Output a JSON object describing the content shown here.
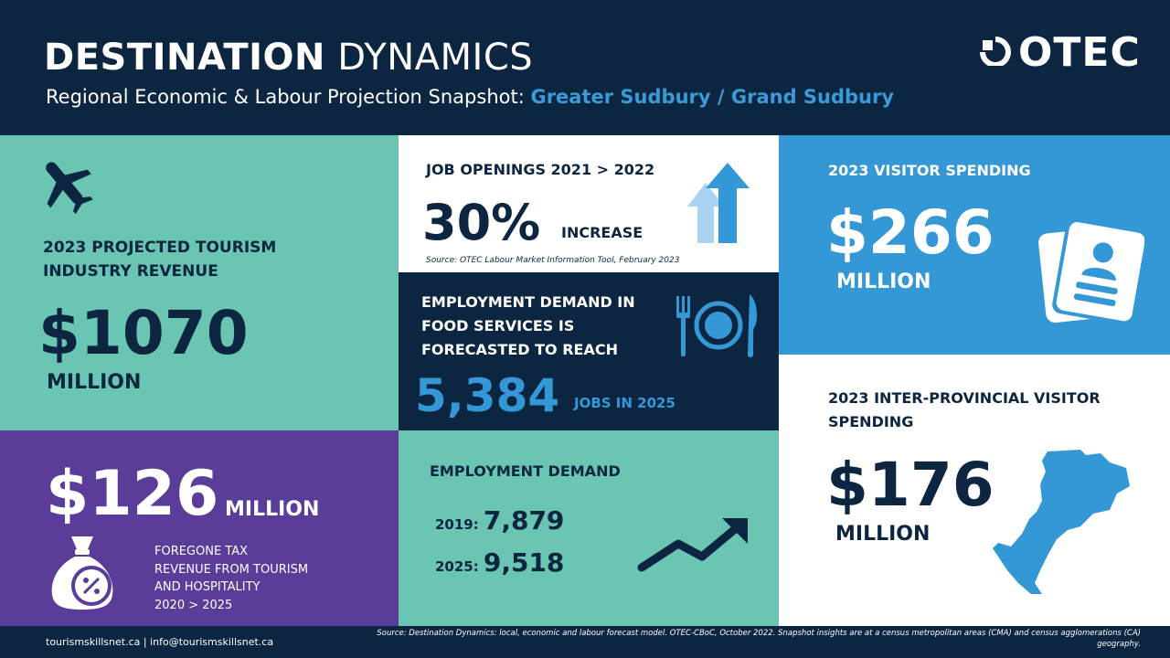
{
  "header": {
    "title_bold": "DESTINATION",
    "title_light": "DYNAMICS",
    "subtitle": "Regional Economic & Labour Projection Snapshot:",
    "region": "Greater Sudbury / Grand Sudbury",
    "logo_text": "OTEC"
  },
  "tourism_revenue": {
    "label_line1": "2023 PROJECTED TOURISM",
    "label_line2": "INDUSTRY REVENUE",
    "value": "$1070",
    "unit": "MILLION",
    "icon": "airplane-icon"
  },
  "foregone_tax": {
    "value": "$126",
    "unit": "MILLION",
    "line1": "FOREGONE TAX",
    "line2": "REVENUE FROM TOURISM",
    "line3": "AND HOSPITALITY",
    "line4": "2020 > 2025",
    "icon": "money-bag-percent-icon"
  },
  "job_openings": {
    "label": "JOB OPENINGS  2021 > 2022",
    "value": "30%",
    "unit": "INCREASE",
    "source": "Source: OTEC Labour Market Information Tool, February 2023",
    "icon": "up-arrows-icon"
  },
  "food_services": {
    "line1": "EMPLOYMENT DEMAND IN",
    "line2": "FOOD SERVICES IS",
    "line3": "FORECASTED TO REACH",
    "value": "5,384",
    "unit": "JOBS IN 2025",
    "icon": "plate-cutlery-icon"
  },
  "employment_demand": {
    "label": "EMPLOYMENT DEMAND",
    "rows": [
      {
        "year": "2019:",
        "value": "7,879"
      },
      {
        "year": "2025:",
        "value": "9,518"
      }
    ],
    "icon": "trend-up-arrow-icon"
  },
  "visitor_spending": {
    "label": "2023 VISITOR SPENDING",
    "value": "$266",
    "unit": "MILLION",
    "icon": "id-card-icon"
  },
  "interprovincial": {
    "label_line1": "2023 INTER-PROVINCIAL VISITOR",
    "label_line2": "SPENDING",
    "value": "$176",
    "unit": "MILLION",
    "icon": "sudbury-map-icon"
  },
  "footer": {
    "contact": "tourismskillsnet.ca  |  info@tourismskillsnet.ca",
    "source_line1": "Source: Destination Dynamics: local, economic and labour forecast model. OTEC-CBoC, October 2022. Snapshot insights are at a census metropolitan areas (CMA) and census agglomerations (CA)",
    "source_line2": "geography."
  },
  "colors": {
    "navy": "#0c2540",
    "teal": "#6ac5b2",
    "purple": "#5a3c99",
    "blue": "#3598d6",
    "accent_blue": "#3b9bd8"
  }
}
